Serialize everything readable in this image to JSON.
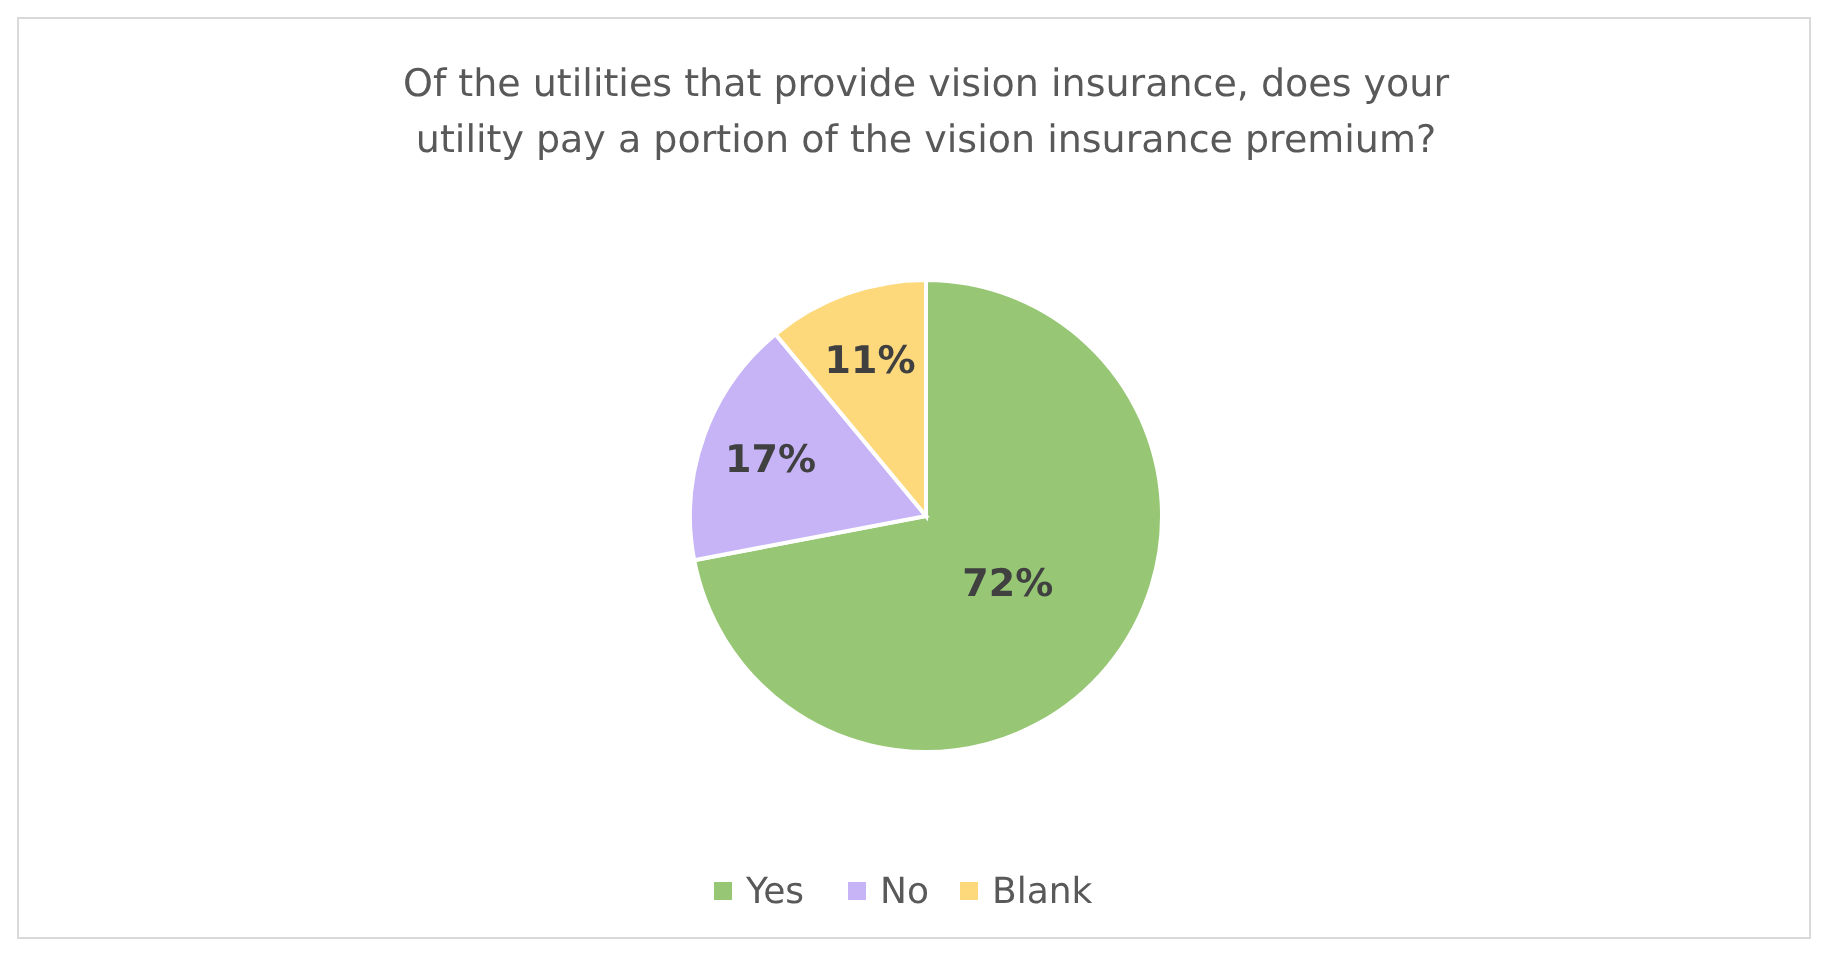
{
  "chart_data": {
    "type": "pie",
    "title": "Of the utilities that provide vision insurance, does your utility pay a portion of the vision insurance premium?",
    "categories": [
      "Yes",
      "No",
      "Blank"
    ],
    "values": [
      72,
      17,
      11
    ],
    "value_labels": [
      "72%",
      "17%",
      "11%"
    ],
    "colors": [
      "#97c775",
      "#c6b4f7",
      "#fdd97c"
    ],
    "legend": "bottom"
  }
}
